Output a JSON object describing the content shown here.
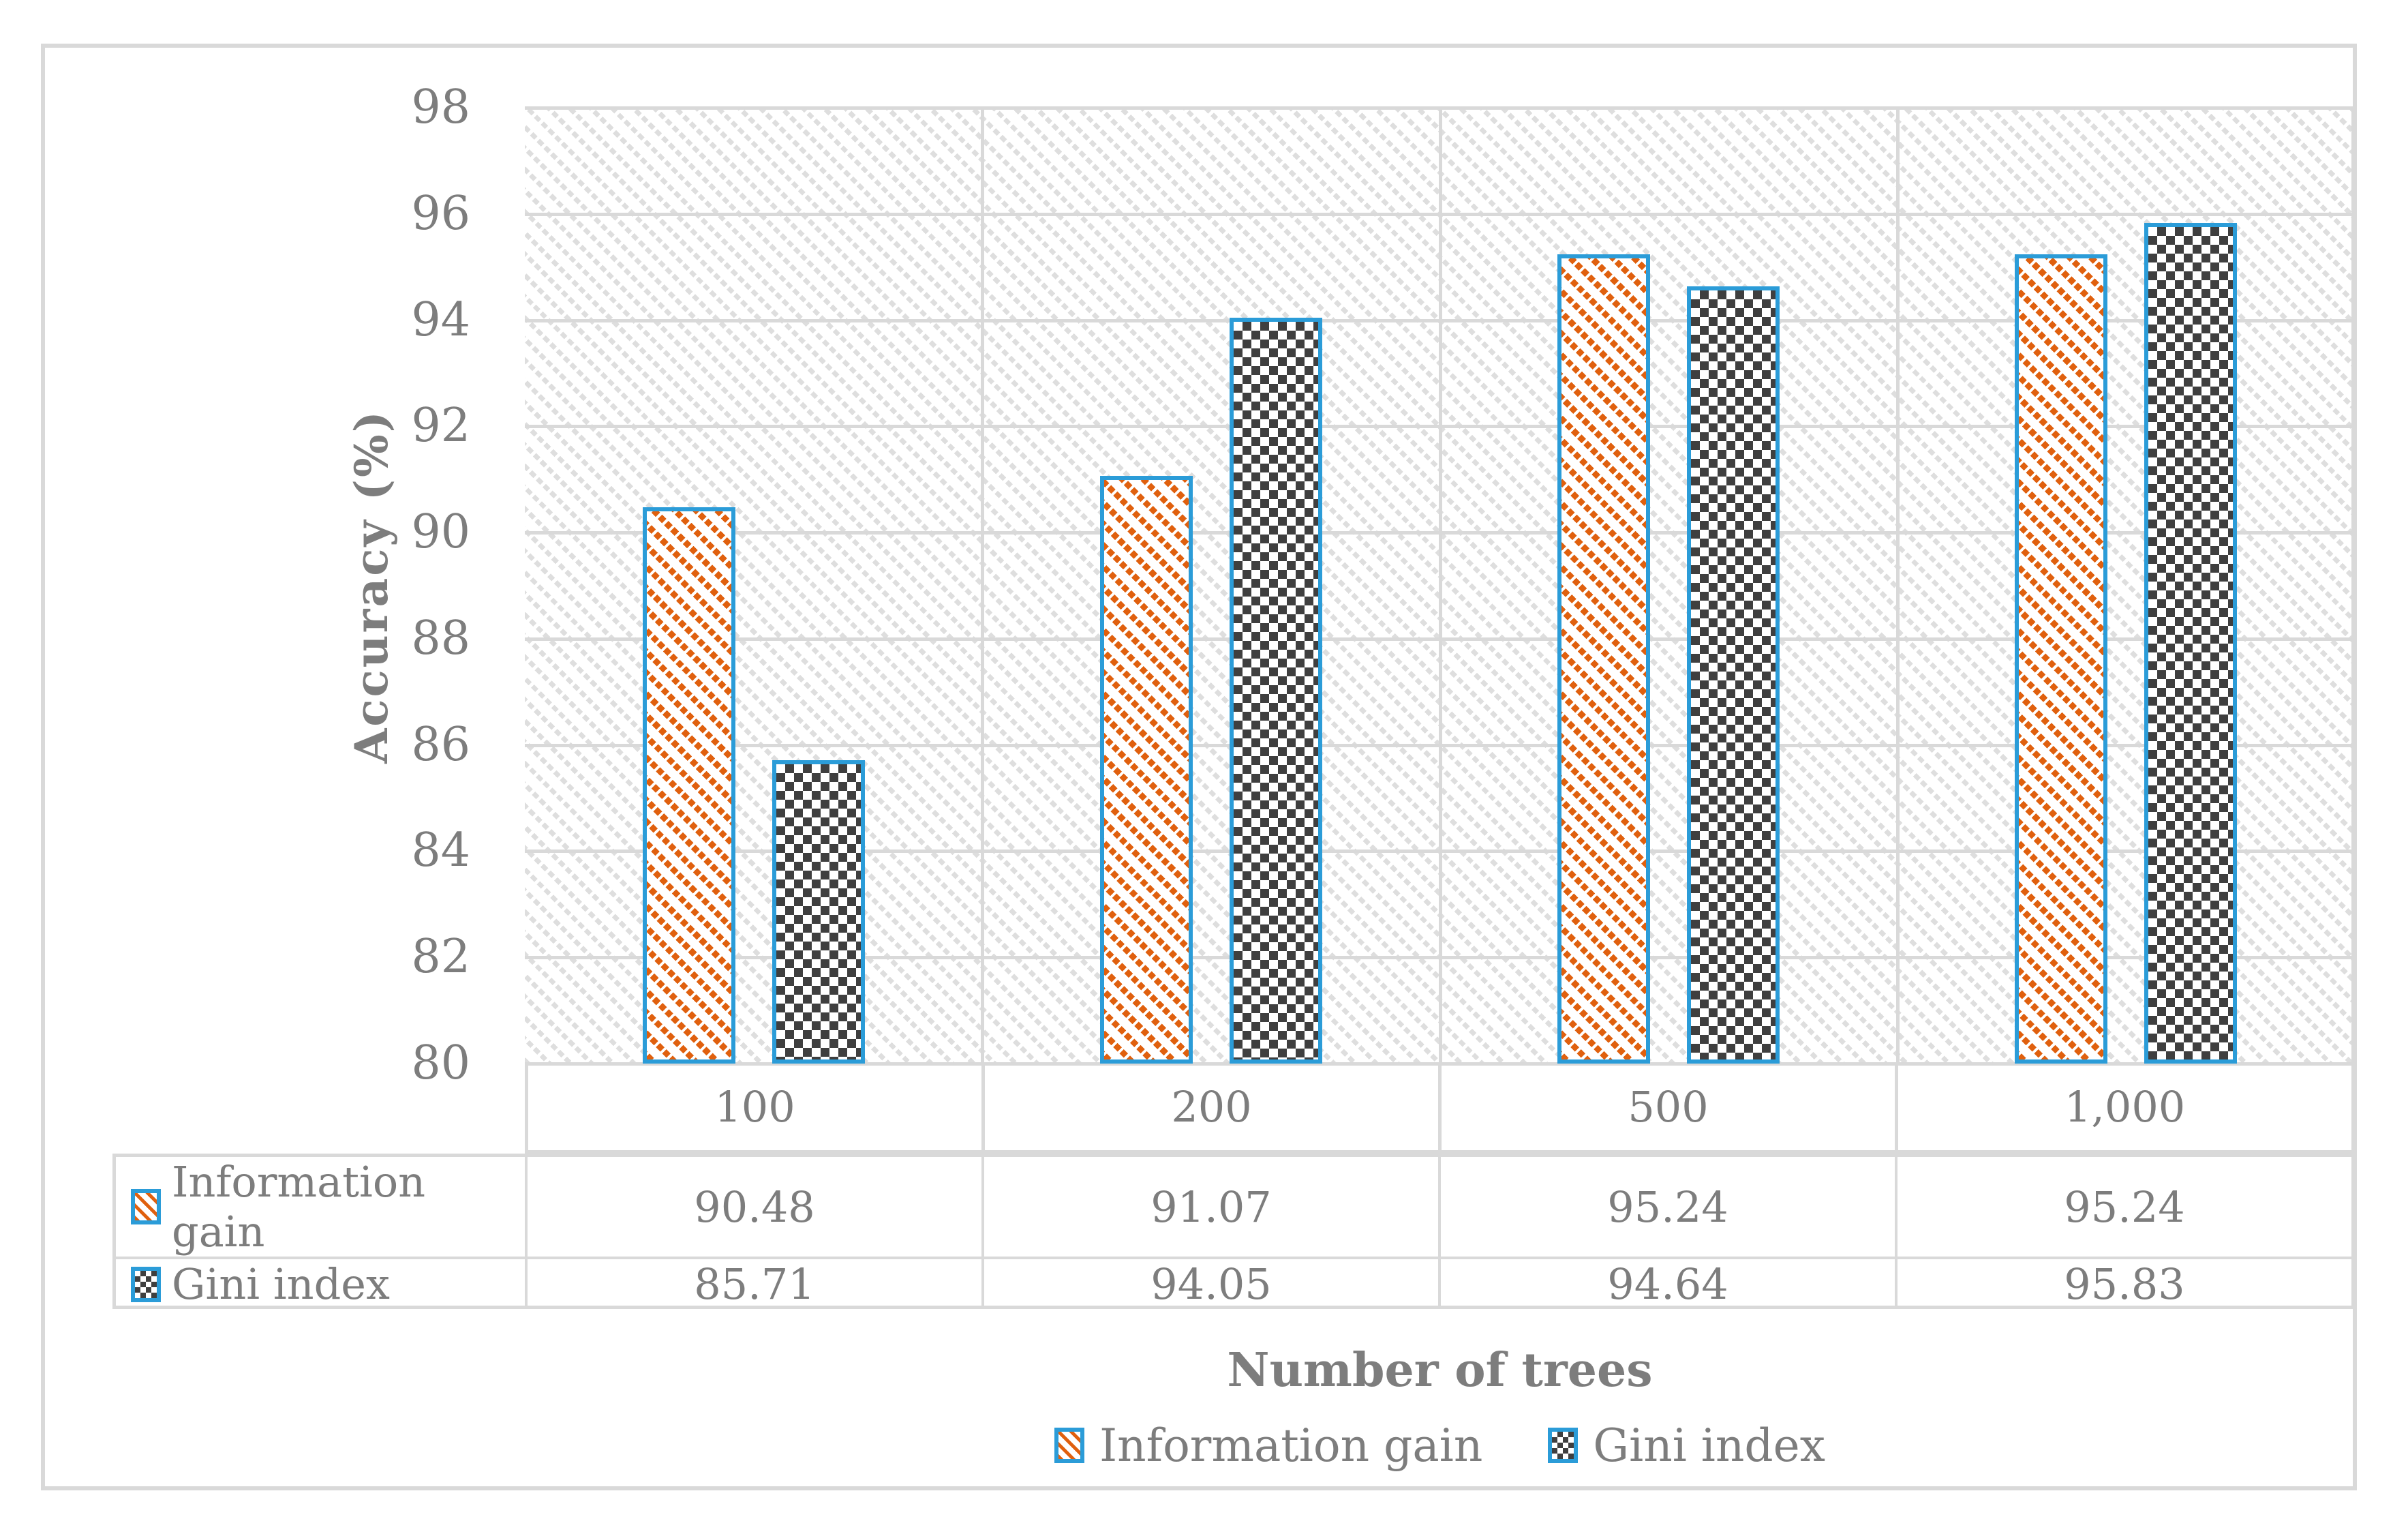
{
  "figure": {
    "frame_border_color": "#d9d9d9",
    "background_color": "#ffffff",
    "text_color": "#7d7d7d"
  },
  "chart_data": {
    "type": "bar",
    "title": "",
    "categories": [
      "100",
      "200",
      "500",
      "1,000"
    ],
    "series": [
      {
        "name": "Information gain",
        "values": [
          90.48,
          91.07,
          95.24,
          95.24
        ],
        "display_values": [
          "90.48",
          "91.07",
          "95.24",
          "95.24"
        ],
        "pattern": "orange-diagonal-hatch",
        "hatch_color": "#e0600e",
        "border_color": "#2b9cd8"
      },
      {
        "name": "Gini index",
        "values": [
          85.71,
          94.05,
          94.64,
          95.83
        ],
        "display_values": [
          "85.71",
          "94.05",
          "94.64",
          "95.83"
        ],
        "pattern": "dark-square-checker",
        "hatch_color": "#3f3f3f",
        "border_color": "#2b9cd8"
      }
    ],
    "xlabel": "Number of trees",
    "ylabel": "Accuracy (%)",
    "ylim": [
      80,
      98
    ],
    "ytick_step": 2,
    "yticks": [
      "98",
      "96",
      "94",
      "92",
      "90",
      "88",
      "86",
      "84",
      "82",
      "80"
    ],
    "grid": "horizontal",
    "gridline_color": "#d9d9d9",
    "plot_background_pattern": "light-gray-diagonal-hatch",
    "legend_position": "bottom",
    "data_table_shown": true
  }
}
